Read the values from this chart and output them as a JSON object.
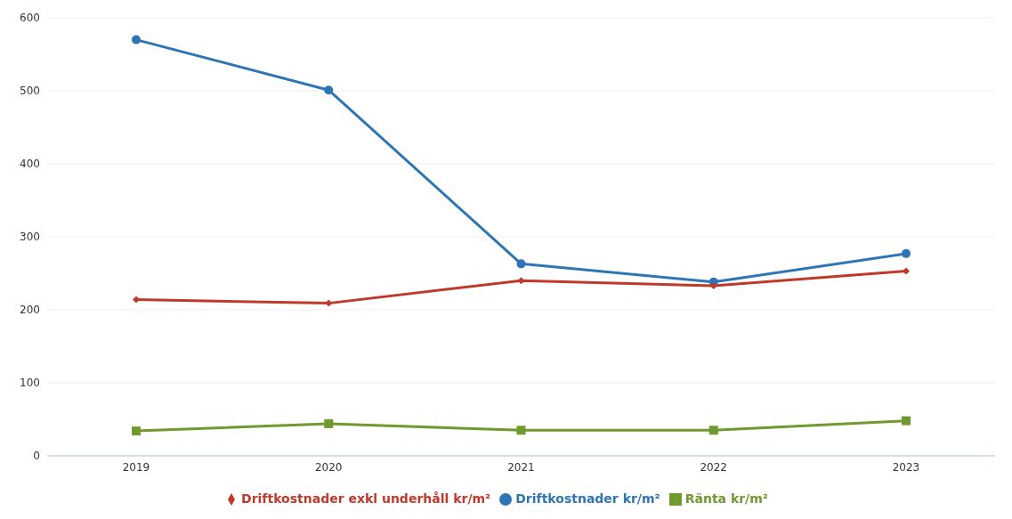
{
  "chart_data": {
    "type": "line",
    "categories": [
      "2019",
      "2020",
      "2021",
      "2022",
      "2023"
    ],
    "series": [
      {
        "name": "Driftkostnader kr/m²",
        "color": "#2e75b6",
        "marker": "circle",
        "values": [
          570,
          501,
          263,
          238,
          277
        ]
      },
      {
        "name": "Driftkostnader exkl underhåll kr/m²",
        "color": "#c0392b",
        "marker": "diamond",
        "values": [
          214,
          209,
          240,
          233,
          253
        ]
      },
      {
        "name": "Ränta kr/m²",
        "color": "#6f9a2e",
        "marker": "square",
        "values": [
          34,
          44,
          35,
          35,
          48
        ]
      }
    ],
    "ylim": [
      0,
      600
    ],
    "yticks": [
      0,
      100,
      200,
      300,
      400,
      500,
      600
    ],
    "grid": "y",
    "legend": "bottom"
  }
}
